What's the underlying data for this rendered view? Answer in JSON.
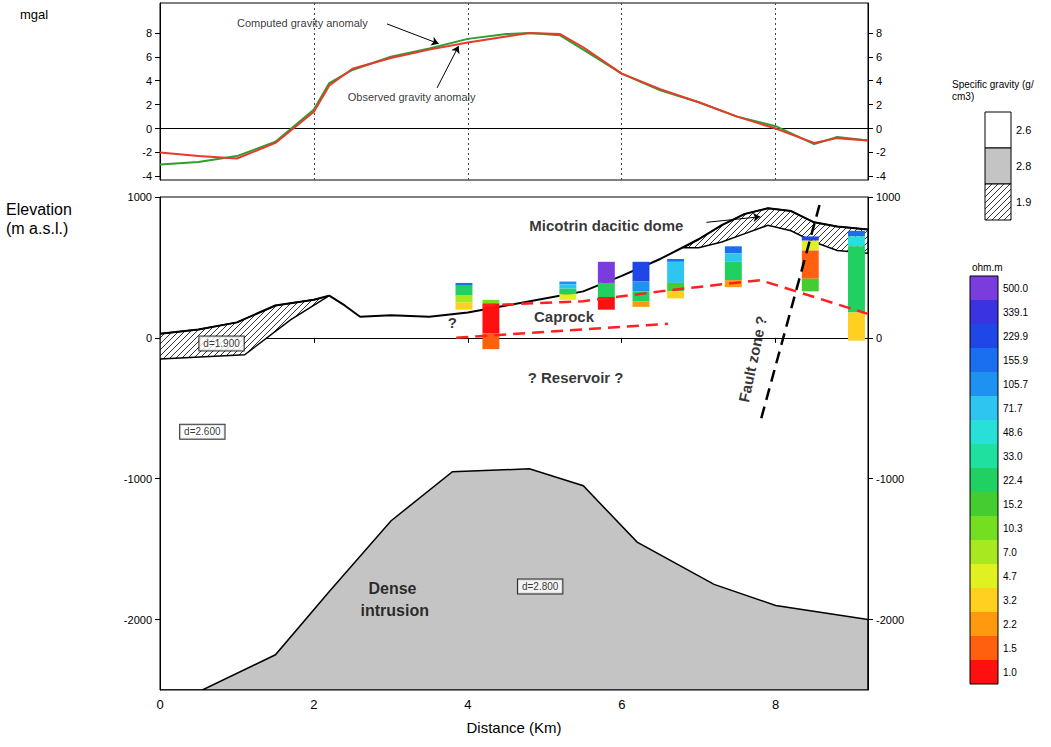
{
  "chart_data": [
    {
      "type": "line",
      "y_label": "mgal",
      "xlim": [
        0,
        9.2
      ],
      "ylim": [
        -4.3,
        10.5
      ],
      "xticks": [
        0,
        2,
        4,
        6,
        8
      ],
      "yticks": [
        -4,
        -2,
        0,
        2,
        4,
        6,
        8
      ],
      "tick_labels": "y",
      "grid": "x",
      "series": [
        {
          "color": "#2e9e2e",
          "x": [
            0,
            0.5,
            1,
            1.5,
            2,
            2.2,
            2.5,
            3,
            3.5,
            4,
            4.5,
            4.8,
            5.2,
            5.5,
            6,
            6.5,
            7,
            7.5,
            8,
            8.5,
            8.8,
            9.2
          ],
          "values": [
            -3,
            -2.8,
            -2.3,
            -1.1,
            1.6,
            3.8,
            4.9,
            6.0,
            6.7,
            7.5,
            7.9,
            8.0,
            7.8,
            6.6,
            4.6,
            3.2,
            2.2,
            1.0,
            0.2,
            -1.3,
            -0.7,
            -1.0
          ]
        },
        {
          "color": "#e8392c",
          "x": [
            0,
            0.5,
            1,
            1.5,
            2,
            2.2,
            2.5,
            3,
            3.5,
            4,
            4.5,
            4.8,
            5.2,
            5.5,
            6,
            6.5,
            7,
            7.5,
            8,
            8.5,
            8.8,
            9.2
          ],
          "values": [
            -2,
            -2.3,
            -2.5,
            -1.2,
            1.4,
            3.6,
            5.0,
            5.9,
            6.6,
            7.2,
            7.7,
            8.0,
            7.9,
            6.8,
            4.6,
            3.3,
            2.2,
            1.0,
            0.0,
            -1.2,
            -0.8,
            -1.0
          ]
        }
      ],
      "annotations": [
        {
          "text": "Computed gravity anomaly",
          "x": 1.85,
          "y": 8.8,
          "arrow": [
            [
              2.95,
              8.75
            ],
            [
              3.62,
              7.1
            ]
          ]
        },
        {
          "text": "Observed gravity anomaly",
          "x": 3.27,
          "y": 2.6,
          "arrow": [
            [
              3.6,
              3.4
            ],
            [
              3.88,
              6.9
            ]
          ]
        }
      ]
    },
    {
      "type": "section",
      "x_label": "Distance (Km)",
      "y_label": "Elevation (m a.s.l.)",
      "xlim": [
        0,
        9.2
      ],
      "ylim": [
        -2500,
        1000
      ],
      "xticks": [
        0,
        2,
        4,
        6,
        8
      ],
      "yticks": [
        -2000,
        -1000,
        0,
        1000
      ],
      "grid": false,
      "background": {
        "density": 2.6,
        "label": "d=2.600",
        "label_at": [
          0.55,
          -667
        ]
      },
      "bodies": [
        {
          "density": 2.8,
          "label": "d=2.800",
          "label_at": [
            4.94,
            -1766
          ],
          "points": [
            [
              0,
              -2500
            ],
            [
              0.55,
              -2500
            ],
            [
              1.5,
              -2250
            ],
            [
              2.2,
              -1800
            ],
            [
              3.0,
              -1300
            ],
            [
              3.8,
              -950
            ],
            [
              4.8,
              -930
            ],
            [
              5.5,
              -1050
            ],
            [
              6.2,
              -1450
            ],
            [
              7.2,
              -1750
            ],
            [
              8.0,
              -1900
            ],
            [
              8.6,
              -1950
            ],
            [
              9.2,
              -2000
            ],
            [
              9.2,
              -2500
            ]
          ]
        },
        {
          "density": 1.9,
          "label": "d=1.900",
          "label_at": [
            0.8,
            -40
          ],
          "points": [
            [
              0,
              30
            ],
            [
              0.5,
              60
            ],
            [
              1.0,
              110
            ],
            [
              1.5,
              230
            ],
            [
              2.0,
              270
            ],
            [
              2.2,
              300
            ],
            [
              1.7,
              130
            ],
            [
              1.1,
              -120
            ],
            [
              0,
              -150
            ]
          ]
        },
        {
          "density": 1.9,
          "points": [
            [
              6.8,
              640
            ],
            [
              7.0,
              700
            ],
            [
              7.3,
              800
            ],
            [
              7.6,
              880
            ],
            [
              7.9,
              920
            ],
            [
              8.2,
              900
            ],
            [
              8.5,
              820
            ],
            [
              8.8,
              790
            ],
            [
              9.2,
              770
            ],
            [
              9.2,
              600
            ],
            [
              8.8,
              620
            ],
            [
              8.5,
              680
            ],
            [
              8.2,
              760
            ],
            [
              7.9,
              800
            ],
            [
              7.6,
              740
            ],
            [
              7.3,
              680
            ],
            [
              7.0,
              640
            ]
          ]
        }
      ],
      "lines": [
        {
          "color": "#000000",
          "line_style": "solid",
          "x": [
            0,
            0.5,
            1.0,
            1.5,
            2.0,
            2.2,
            2.4,
            2.6,
            3.0,
            3.5,
            4.0,
            4.5,
            5.0,
            5.5,
            6.0,
            6.5,
            7.0,
            7.3,
            7.6,
            7.9,
            8.2,
            8.5,
            8.8,
            9.2
          ],
          "values": [
            30,
            60,
            110,
            230,
            270,
            300,
            230,
            150,
            160,
            150,
            180,
            230,
            280,
            330,
            440,
            560,
            700,
            800,
            880,
            920,
            900,
            820,
            790,
            770
          ]
        },
        {
          "color": "#ff2020",
          "line_style": "dashed",
          "x": [
            4.2,
            5.5,
            6.5,
            7.3,
            7.8,
            9.2
          ],
          "values": [
            230,
            260,
            330,
            380,
            410,
            170
          ]
        },
        {
          "color": "#ff2020",
          "line_style": "dashed",
          "x": [
            3.85,
            6.6
          ],
          "values": [
            0,
            100
          ]
        },
        {
          "color": "#000000",
          "line_style": "dashed",
          "x": [
            8.57,
            7.79
          ],
          "values": [
            943,
            -617
          ]
        }
      ],
      "soundings": [
        {
          "x": 3.95,
          "layers": [
            {
              "top": 390,
              "bottom": 370,
              "resistivity": 155.9
            },
            {
              "top": 370,
              "bottom": 300,
              "resistivity": 22.4
            },
            {
              "top": 300,
              "bottom": 250,
              "resistivity": 7.0
            },
            {
              "top": 250,
              "bottom": 200,
              "resistivity": 3.2
            }
          ]
        },
        {
          "x": 4.3,
          "layers": [
            {
              "top": 270,
              "bottom": 245,
              "resistivity": 10.3
            },
            {
              "top": 245,
              "bottom": 30,
              "resistivity": 1.0
            },
            {
              "top": 30,
              "bottom": -80,
              "resistivity": 1.5
            }
          ]
        },
        {
          "x": 5.3,
          "layers": [
            {
              "top": 400,
              "bottom": 380,
              "resistivity": 105.7
            },
            {
              "top": 380,
              "bottom": 350,
              "resistivity": 71.7
            },
            {
              "top": 350,
              "bottom": 310,
              "resistivity": 22.4
            },
            {
              "top": 310,
              "bottom": 270,
              "resistivity": 4.7
            }
          ]
        },
        {
          "x": 5.8,
          "layers": [
            {
              "top": 540,
              "bottom": 390,
              "resistivity": 500
            },
            {
              "top": 390,
              "bottom": 290,
              "resistivity": 22.4
            },
            {
              "top": 290,
              "bottom": 200,
              "resistivity": 1.0
            }
          ]
        },
        {
          "x": 6.25,
          "layers": [
            {
              "top": 540,
              "bottom": 400,
              "resistivity": 229.9
            },
            {
              "top": 400,
              "bottom": 330,
              "resistivity": 105.7
            },
            {
              "top": 330,
              "bottom": 260,
              "resistivity": 22.4
            },
            {
              "top": 260,
              "bottom": 220,
              "resistivity": 2.2
            }
          ]
        },
        {
          "x": 6.7,
          "layers": [
            {
              "top": 560,
              "bottom": 540,
              "resistivity": 155.9
            },
            {
              "top": 540,
              "bottom": 390,
              "resistivity": 71.7
            },
            {
              "top": 390,
              "bottom": 330,
              "resistivity": 15.2
            },
            {
              "top": 330,
              "bottom": 280,
              "resistivity": 3.2
            }
          ]
        },
        {
          "x": 7.45,
          "layers": [
            {
              "top": 650,
              "bottom": 600,
              "resistivity": 155.9
            },
            {
              "top": 600,
              "bottom": 540,
              "resistivity": 71.7
            },
            {
              "top": 540,
              "bottom": 410,
              "resistivity": 22.4
            },
            {
              "top": 410,
              "bottom": 360,
              "resistivity": 2.2
            }
          ]
        },
        {
          "x": 8.45,
          "layers": [
            {
              "top": 720,
              "bottom": 690,
              "resistivity": 229.9
            },
            {
              "top": 690,
              "bottom": 620,
              "resistivity": 4.7
            },
            {
              "top": 620,
              "bottom": 420,
              "resistivity": 1.5
            },
            {
              "top": 420,
              "bottom": 330,
              "resistivity": 15.2
            }
          ]
        },
        {
          "x": 9.05,
          "layers": [
            {
              "top": 760,
              "bottom": 720,
              "resistivity": 155.9
            },
            {
              "top": 720,
              "bottom": 650,
              "resistivity": 48.6
            },
            {
              "top": 650,
              "bottom": 180,
              "resistivity": 22.4
            },
            {
              "top": 180,
              "bottom": -20,
              "resistivity": 3.2
            }
          ]
        }
      ],
      "annotations": [
        {
          "text": "Micotrin dacitic dome",
          "x": 5.8,
          "y": 800,
          "arrow": [
            [
              7.1,
              820
            ],
            [
              7.8,
              860
            ]
          ]
        },
        {
          "text": "Caprock",
          "x": 5.25,
          "y": 150
        },
        {
          "text": "? Reservoir ?",
          "x": 5.4,
          "y": -284
        },
        {
          "text": "?",
          "x": 3.8,
          "y": 110
        },
        {
          "text": "Fault zone ?",
          "x": 7.7,
          "y": -150
        },
        {
          "text": "Dense intrusion",
          "x": 3.05,
          "y": -1858
        }
      ],
      "density_legend": {
        "title": "Specific gravity (g/cm3)",
        "items": [
          {
            "value": 2.6,
            "color": "#ffffff"
          },
          {
            "value": 2.8,
            "color": "#c4c4c4"
          },
          {
            "value": 1.9,
            "color": "#ffffff",
            "marker": "hatch"
          }
        ]
      },
      "resistivity_scale": {
        "title": "ohm.m",
        "values": [
          {
            "value": 500,
            "label": "500.0"
          },
          339.1,
          229.9,
          155.9,
          105.7,
          71.7,
          48.6,
          {
            "value": 33,
            "label": "33.0"
          },
          22.4,
          15.2,
          10.3,
          {
            "value": 7,
            "label": "7.0"
          },
          4.7,
          3.2,
          2.2,
          1.5,
          {
            "value": 1,
            "label": "1.0"
          }
        ],
        "colors": [
          "#7a3cdc",
          "#3a34e0",
          "#1f46e6",
          "#1a6ff0",
          "#1e92f0",
          "#2ec5f0",
          "#28e0d8",
          "#20e0a0",
          "#20d060",
          "#44cc30",
          "#74de20",
          "#a8e820",
          "#e0f020",
          "#ffd020",
          "#ff9a10",
          "#ff6010",
          "#ff1010"
        ]
      }
    }
  ]
}
